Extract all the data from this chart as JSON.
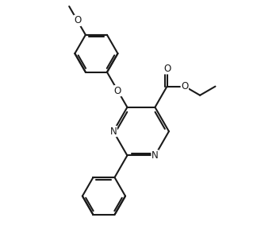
{
  "background_color": "#ffffff",
  "line_color": "#1a1a1a",
  "line_width": 1.5,
  "font_size": 8.5,
  "figsize": [
    3.24,
    3.08
  ],
  "dpi": 100,
  "xlim": [
    0,
    10
  ],
  "ylim": [
    0,
    9.5
  ]
}
